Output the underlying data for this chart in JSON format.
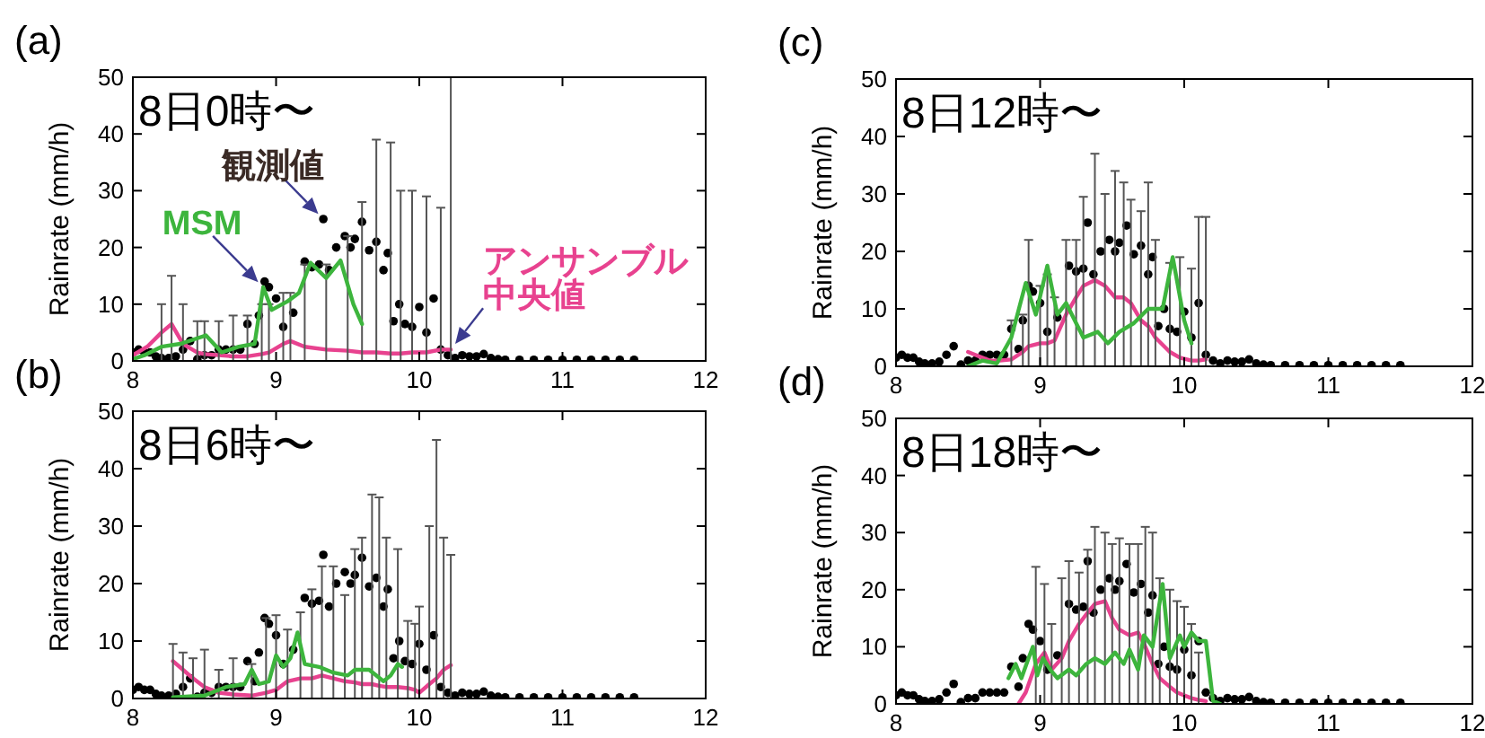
{
  "chart_data": [
    {
      "type": "line",
      "title": "(a)",
      "subtitle": "8日0時〜",
      "ylabel": "Rainrate (mm/h)",
      "xlim": [
        8,
        12
      ],
      "xticks": [
        8,
        9,
        10,
        11,
        12
      ],
      "ylim": [
        0,
        50
      ],
      "yticks": [
        0,
        10,
        20,
        30,
        40,
        50
      ],
      "series": [
        {
          "type": "line",
          "color": "#e8428f",
          "x": [
            8.0,
            8.1,
            8.2,
            8.27,
            8.35,
            8.45,
            8.5,
            8.6,
            8.7,
            8.8,
            8.9,
            8.95,
            9.05,
            9.1,
            9.2,
            9.35,
            9.5,
            9.6,
            9.7,
            9.8,
            9.87,
            9.95,
            10.05,
            10.15,
            10.22
          ],
          "values": [
            1,
            2.5,
            5,
            6.5,
            3,
            1.5,
            1.2,
            1,
            0.8,
            0.8,
            1.2,
            1.5,
            3,
            3.5,
            2.5,
            2,
            1.8,
            1.5,
            1.5,
            1.3,
            1.3,
            1.5,
            1.5,
            2,
            2
          ],
          "errors": [
            null,
            null,
            [
              0,
              10
            ],
            [
              0,
              15
            ],
            [
              0,
              10
            ],
            [
              0,
              7
            ],
            [
              0,
              7
            ],
            [
              0,
              7
            ],
            [
              0,
              8
            ],
            [
              0,
              8
            ],
            [
              0,
              10
            ],
            [
              0,
              10
            ],
            [
              0,
              12
            ],
            [
              0,
              12
            ],
            [
              0,
              17
            ],
            [
              0,
              17
            ],
            [
              0,
              22
            ],
            [
              0,
              28
            ],
            [
              0,
              39
            ],
            [
              0,
              38.5
            ],
            [
              0,
              30
            ],
            [
              0,
              30
            ],
            [
              0,
              29
            ],
            [
              0,
              27
            ],
            [
              0,
              50
            ]
          ]
        },
        {
          "type": "line",
          "color": "#3db53d",
          "x": [
            8.0,
            8.08,
            8.2,
            8.33,
            8.45,
            8.51,
            8.62,
            8.74,
            8.85,
            8.91,
            8.97,
            9.08,
            9.16,
            9.24,
            9.35,
            9.45,
            9.54,
            9.6
          ],
          "values": [
            0.3,
            1,
            2.5,
            3,
            4,
            4.5,
            1.5,
            2.5,
            3,
            13,
            9,
            10.5,
            12,
            17.3,
            14.6,
            17.7,
            10,
            6.5
          ]
        },
        {
          "type": "scatter",
          "color": "#000000",
          "marker": "circle",
          "x": [
            8.0,
            8.04,
            8.08,
            8.12,
            8.16,
            8.2,
            8.25,
            8.3,
            8.35,
            8.4,
            8.45,
            8.5,
            8.55,
            8.6,
            8.65,
            8.7,
            8.75,
            8.8,
            8.85,
            8.88,
            8.92,
            8.95,
            9.0,
            9.05,
            9.12,
            9.2,
            9.25,
            9.3,
            9.33,
            9.37,
            9.42,
            9.48,
            9.52,
            9.55,
            9.6,
            9.65,
            9.7,
            9.75,
            9.78,
            9.82,
            9.86,
            9.9,
            9.95,
            10.0,
            10.05,
            10.1,
            10.15,
            10.2,
            10.25,
            10.3,
            10.35,
            10.4,
            10.45,
            10.5,
            10.55,
            10.6,
            10.7,
            10.8,
            10.9,
            11.0,
            11.1,
            11.2,
            11.3,
            11.4,
            11.5
          ],
          "values": [
            1.5,
            2,
            1.5,
            1.5,
            0.8,
            0.5,
            0.5,
            0.8,
            2,
            3.5,
            0.3,
            1,
            1,
            2,
            2,
            2,
            2,
            6.5,
            3,
            8,
            14,
            13,
            11,
            6,
            8.5,
            17.5,
            16.5,
            17,
            25,
            16,
            20,
            22,
            20,
            21.5,
            24.5,
            19.5,
            21,
            16,
            19,
            7,
            10,
            6.5,
            6,
            9.5,
            5,
            11,
            2,
            1,
            0.5,
            1,
            0.8,
            0.8,
            1.2,
            0.5,
            0.3,
            0.2,
            0.2,
            0.2,
            0.2,
            0.2,
            0.2,
            0.2,
            0.2,
            0.2,
            0.2
          ]
        }
      ],
      "annotations": [
        {
          "text": "アンサンブル中央値",
          "x": 10.22,
          "y": 2
        },
        {
          "text": "MSM",
          "x": 8.91,
          "y": 13
        },
        {
          "text": "観測値",
          "x": 9.33,
          "y": 25
        }
      ]
    },
    {
      "type": "line",
      "title": "(b)",
      "subtitle": "8日6時〜",
      "ylabel": "Rainrate (mm/h)",
      "xlim": [
        8,
        12
      ],
      "xticks": [
        8,
        9,
        10,
        11,
        12
      ],
      "ylim": [
        0,
        50
      ],
      "yticks": [
        0,
        10,
        20,
        30,
        40,
        50
      ],
      "series": [
        {
          "type": "line",
          "color": "#e8428f",
          "x": [
            8.28,
            8.35,
            8.42,
            8.5,
            8.6,
            8.7,
            8.83,
            8.93,
            9.0,
            9.08,
            9.17,
            9.25,
            9.32,
            9.4,
            9.48,
            9.55,
            9.6,
            9.67,
            9.72,
            9.77,
            9.85,
            9.92,
            9.97,
            10.0,
            10.07,
            10.12,
            10.17,
            10.22
          ],
          "values": [
            6.5,
            5,
            3.5,
            2,
            1,
            0.7,
            0.5,
            1,
            1.5,
            3,
            3.5,
            3.5,
            4,
            3.5,
            3,
            2.8,
            2.5,
            2.5,
            2.2,
            2,
            2,
            1.8,
            1.5,
            1,
            2.5,
            3.5,
            5,
            5.8
          ],
          "errors": [
            [
              0,
              9.5
            ],
            [
              0,
              8
            ],
            [
              0,
              7
            ],
            [
              0,
              8.5
            ],
            [
              0,
              5
            ],
            [
              0,
              7
            ],
            [
              0,
              6
            ],
            [
              0,
              14
            ],
            [
              0,
              14.5
            ],
            [
              0,
              12
            ],
            [
              0,
              15
            ],
            [
              0,
              19
            ],
            [
              0,
              23
            ],
            [
              0,
              23
            ],
            [
              0,
              18
            ],
            [
              0,
              26
            ],
            [
              0,
              28
            ],
            [
              0,
              35.5
            ],
            [
              0,
              35
            ],
            [
              0,
              28
            ],
            [
              0,
              26
            ],
            [
              0,
              13.5
            ],
            [
              0,
              13
            ],
            [
              0,
              16
            ],
            [
              0,
              30
            ],
            [
              0,
              45
            ],
            [
              0,
              28
            ],
            [
              0,
              25
            ]
          ]
        },
        {
          "type": "line",
          "color": "#3db53d",
          "x": [
            8.28,
            8.5,
            8.65,
            8.78,
            8.83,
            8.88,
            8.95,
            9.0,
            9.05,
            9.1,
            9.15,
            9.2,
            9.3,
            9.4,
            9.5,
            9.55,
            9.65,
            9.75,
            9.8,
            9.85,
            9.88
          ],
          "values": [
            0.2,
            0.5,
            2,
            2.5,
            5,
            2.5,
            3,
            7.5,
            5.5,
            7,
            11.5,
            6,
            5.5,
            4.5,
            4,
            5,
            5,
            3,
            4,
            6,
            5.5
          ]
        },
        {
          "type": "scatter",
          "color": "#000000",
          "marker": "circle",
          "x": [
            8.0,
            8.04,
            8.08,
            8.12,
            8.16,
            8.2,
            8.25,
            8.3,
            8.35,
            8.4,
            8.45,
            8.5,
            8.55,
            8.6,
            8.65,
            8.7,
            8.75,
            8.8,
            8.85,
            8.88,
            8.92,
            8.95,
            9.0,
            9.05,
            9.12,
            9.2,
            9.25,
            9.3,
            9.33,
            9.37,
            9.42,
            9.48,
            9.52,
            9.55,
            9.6,
            9.65,
            9.7,
            9.75,
            9.78,
            9.82,
            9.86,
            9.9,
            9.95,
            10.0,
            10.05,
            10.1,
            10.15,
            10.2,
            10.25,
            10.3,
            10.35,
            10.4,
            10.45,
            10.5,
            10.55,
            10.6,
            10.7,
            10.8,
            10.9,
            11.0,
            11.1,
            11.2,
            11.3,
            11.4,
            11.5
          ],
          "values": [
            1.5,
            2,
            1.5,
            1.5,
            0.8,
            0.5,
            0.5,
            0.8,
            2,
            3.5,
            0.3,
            1,
            1,
            2,
            2,
            2,
            2,
            6.5,
            3,
            8,
            14,
            13,
            11,
            6,
            8.5,
            17.5,
            16.5,
            17,
            25,
            16,
            20,
            22,
            20,
            21.5,
            24.5,
            19.5,
            21,
            16,
            19,
            7,
            10,
            6.5,
            6,
            9.5,
            5,
            11,
            2,
            1,
            0.5,
            1,
            0.8,
            0.8,
            1.2,
            0.5,
            0.3,
            0.2,
            0.2,
            0.2,
            0.2,
            0.2,
            0.2,
            0.2,
            0.2,
            0.2,
            0.2
          ]
        }
      ]
    },
    {
      "type": "line",
      "title": "(c)",
      "subtitle": "8日12時〜",
      "ylabel": "Rainrate (mm/h)",
      "xlim": [
        8,
        12
      ],
      "xticks": [
        8,
        9,
        10,
        11,
        12
      ],
      "ylim": [
        0,
        50
      ],
      "yticks": [
        0,
        10,
        20,
        30,
        40,
        50
      ],
      "series": [
        {
          "type": "line",
          "color": "#e8428f",
          "x": [
            8.5,
            8.55,
            8.65,
            8.72,
            8.8,
            8.88,
            8.92,
            9.0,
            9.05,
            9.1,
            9.18,
            9.25,
            9.3,
            9.38,
            9.45,
            9.52,
            9.58,
            9.63,
            9.7,
            9.75,
            9.8,
            9.9,
            9.97,
            10.05,
            10.1,
            10.15
          ],
          "values": [
            2.5,
            2,
            1,
            1,
            1.2,
            2.5,
            3.5,
            4,
            4,
            4.5,
            9,
            12,
            14,
            15,
            14,
            12,
            12,
            11,
            8,
            7,
            5,
            2.5,
            1.5,
            1,
            1,
            1.2
          ],
          "errors": [
            null,
            null,
            null,
            null,
            [
              0,
              8
            ],
            [
              0,
              9
            ],
            [
              0,
              22
            ],
            [
              0,
              14
            ],
            [
              0,
              16
            ],
            [
              0,
              12
            ],
            [
              0,
              22
            ],
            [
              0,
              22
            ],
            [
              0,
              29.5
            ],
            [
              0,
              37
            ],
            [
              0,
              30
            ],
            [
              0,
              34
            ],
            [
              0,
              32
            ],
            [
              0,
              29
            ],
            [
              0,
              27
            ],
            [
              0,
              32
            ],
            [
              0,
              22
            ],
            [
              0,
              18
            ],
            [
              0,
              19
            ],
            [
              0,
              17
            ],
            [
              0,
              26
            ],
            [
              0,
              26
            ]
          ]
        },
        {
          "type": "line",
          "color": "#3db53d",
          "x": [
            8.5,
            8.6,
            8.7,
            8.8,
            8.9,
            8.97,
            9.05,
            9.12,
            9.18,
            9.3,
            9.4,
            9.47,
            9.55,
            9.65,
            9.75,
            9.85,
            9.92,
            10.0,
            10.05
          ],
          "values": [
            0,
            1,
            0.5,
            5,
            14.5,
            9,
            17.5,
            9,
            11,
            5,
            6,
            4,
            6,
            7.5,
            10,
            10,
            19,
            8,
            4
          ]
        },
        {
          "type": "scatter",
          "color": "#000000",
          "marker": "circle",
          "x": [
            8.0,
            8.04,
            8.08,
            8.12,
            8.16,
            8.2,
            8.25,
            8.3,
            8.35,
            8.4,
            8.45,
            8.5,
            8.55,
            8.6,
            8.65,
            8.7,
            8.75,
            8.8,
            8.85,
            8.88,
            8.92,
            8.95,
            9.0,
            9.05,
            9.12,
            9.2,
            9.25,
            9.3,
            9.33,
            9.37,
            9.42,
            9.48,
            9.52,
            9.55,
            9.6,
            9.65,
            9.7,
            9.75,
            9.78,
            9.82,
            9.86,
            9.9,
            9.95,
            10.0,
            10.05,
            10.1,
            10.15,
            10.2,
            10.25,
            10.3,
            10.35,
            10.4,
            10.45,
            10.5,
            10.55,
            10.6,
            10.7,
            10.8,
            10.9,
            11.0,
            11.1,
            11.2,
            11.3,
            11.4,
            11.5
          ],
          "values": [
            1.5,
            2,
            1.5,
            1.5,
            0.8,
            0.5,
            0.5,
            0.8,
            2,
            3.5,
            0.3,
            1,
            1,
            2,
            2,
            2,
            2,
            6.5,
            3,
            8,
            14,
            13,
            11,
            6,
            8.5,
            17.5,
            16.5,
            17,
            25,
            16,
            20,
            22,
            20,
            21.5,
            24.5,
            19.5,
            21,
            16,
            19,
            7,
            10,
            6.5,
            6,
            9.5,
            5,
            11,
            2,
            1,
            0.5,
            1,
            0.8,
            0.8,
            1.2,
            0.5,
            0.3,
            0.2,
            0.2,
            0.2,
            0.2,
            0.2,
            0.2,
            0.2,
            0.2,
            0.2,
            0.2
          ]
        }
      ]
    },
    {
      "type": "line",
      "title": "(d)",
      "subtitle": "8日18時〜",
      "ylabel": "Rainrate (mm/h)",
      "xlim": [
        8,
        12
      ],
      "xticks": [
        8,
        9,
        10,
        11,
        12
      ],
      "ylim": [
        0,
        50
      ],
      "yticks": [
        0,
        10,
        20,
        30,
        40,
        50
      ],
      "series": [
        {
          "type": "line",
          "color": "#e8428f",
          "x": [
            8.85,
            8.9,
            8.97,
            9.03,
            9.08,
            9.15,
            9.2,
            9.27,
            9.33,
            9.38,
            9.45,
            9.5,
            9.55,
            9.62,
            9.68,
            9.73,
            9.78,
            9.83,
            9.9,
            9.95,
            10.0,
            10.05,
            10.1,
            10.15
          ],
          "values": [
            0,
            2,
            7,
            9,
            6,
            8,
            11,
            14,
            16,
            17.5,
            18,
            15,
            13,
            12,
            12.5,
            10,
            7,
            4.5,
            3,
            2,
            1.5,
            1,
            0.7,
            0.5
          ],
          "errors": [
            null,
            null,
            [
              0,
              24
            ],
            [
              0,
              21
            ],
            [
              0,
              14
            ],
            [
              0,
              22
            ],
            [
              0,
              25
            ],
            [
              0,
              23
            ],
            [
              0,
              27
            ],
            [
              0,
              31
            ],
            [
              0,
              30
            ],
            [
              0,
              28
            ],
            [
              0,
              29
            ],
            [
              0,
              28
            ],
            [
              0,
              28
            ],
            [
              0,
              31
            ],
            [
              0,
              30
            ],
            [
              0,
              22
            ],
            [
              0,
              20
            ],
            [
              0,
              18
            ],
            [
              0,
              17
            ],
            [
              0,
              14
            ],
            [
              0,
              9
            ],
            null
          ]
        },
        {
          "type": "line",
          "color": "#3db53d",
          "x": [
            8.78,
            8.83,
            8.87,
            8.92,
            8.95,
            8.98,
            9.02,
            9.07,
            9.12,
            9.2,
            9.25,
            9.32,
            9.38,
            9.45,
            9.52,
            9.58,
            9.62,
            9.68,
            9.72,
            9.78,
            9.85,
            9.9,
            9.97,
            10.0,
            10.05,
            10.1,
            10.15,
            10.2,
            10.25
          ],
          "values": [
            4.5,
            7,
            4.5,
            8,
            10,
            5,
            8,
            6,
            4.5,
            6,
            5,
            7,
            8,
            7,
            9,
            7,
            9.5,
            6,
            12,
            10,
            21,
            8,
            12,
            10,
            12.5,
            11,
            11,
            0.5,
            0
          ]
        },
        {
          "type": "scatter",
          "color": "#000000",
          "marker": "circle",
          "x": [
            8.0,
            8.04,
            8.08,
            8.12,
            8.16,
            8.2,
            8.25,
            8.3,
            8.35,
            8.4,
            8.45,
            8.5,
            8.55,
            8.6,
            8.65,
            8.7,
            8.75,
            8.8,
            8.85,
            8.88,
            8.92,
            8.95,
            9.0,
            9.05,
            9.12,
            9.2,
            9.25,
            9.3,
            9.33,
            9.37,
            9.42,
            9.48,
            9.52,
            9.55,
            9.6,
            9.65,
            9.7,
            9.75,
            9.78,
            9.82,
            9.86,
            9.9,
            9.95,
            10.0,
            10.05,
            10.1,
            10.15,
            10.2,
            10.25,
            10.3,
            10.35,
            10.4,
            10.45,
            10.5,
            10.55,
            10.6,
            10.7,
            10.8,
            10.9,
            11.0,
            11.1,
            11.2,
            11.3,
            11.4,
            11.5
          ],
          "values": [
            1.5,
            2,
            1.5,
            1.5,
            0.8,
            0.5,
            0.5,
            0.8,
            2,
            3.5,
            0.3,
            1,
            1,
            2,
            2,
            2,
            2,
            6.5,
            3,
            8,
            14,
            13,
            11,
            6,
            8.5,
            17.5,
            16.5,
            17,
            25,
            16,
            20,
            22,
            20,
            21.5,
            24.5,
            19.5,
            21,
            16,
            19,
            7,
            10,
            6.5,
            6,
            9.5,
            5,
            11,
            2,
            1,
            0.5,
            1,
            0.8,
            0.8,
            1.2,
            0.5,
            0.3,
            0.2,
            0.2,
            0.2,
            0.2,
            0.2,
            0.2,
            0.2,
            0.2,
            0.2,
            0.2
          ]
        }
      ]
    }
  ]
}
